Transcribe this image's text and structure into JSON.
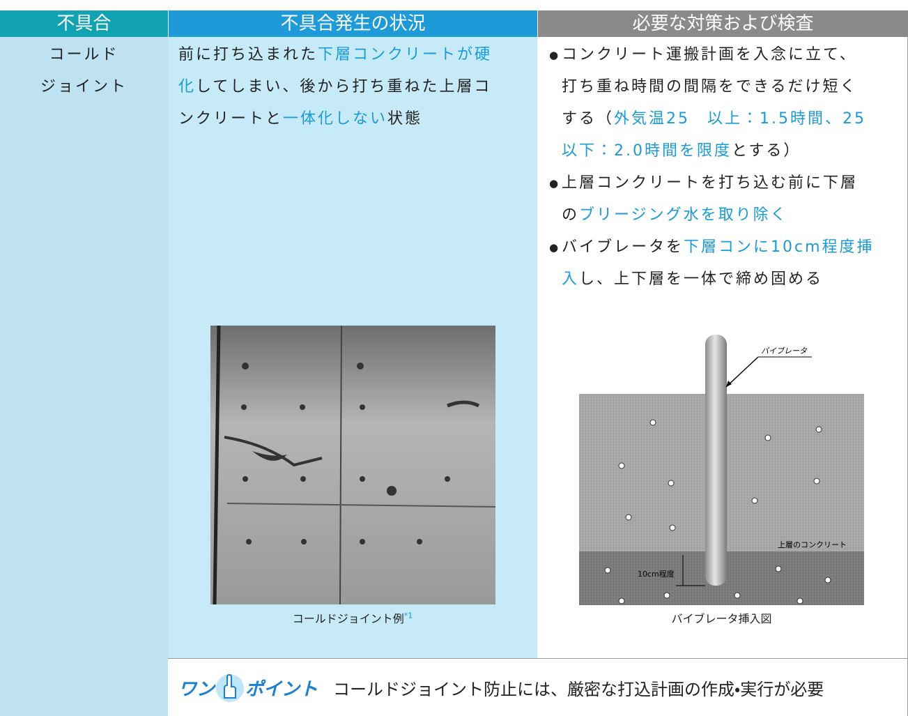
{
  "header": [
    "不具合",
    "不具合発生の状況",
    "必要な対策および検査"
  ],
  "defect": {
    "lines": [
      "コールド",
      "ジョイント"
    ]
  },
  "situation": {
    "lines": [
      [
        {
          "text": "前に打ち込まれた"
        },
        {
          "text": "下層コンクリートが硬",
          "color": "#1a9ad6"
        }
      ],
      [
        {
          "text": "化",
          "color": "#1a9ad6"
        },
        {
          "text": "してしまい、後から打ち重ねた上層コ"
        }
      ],
      [
        {
          "text": "ンクリートと"
        },
        {
          "text": "一体化しない",
          "color": "#1a9ad6"
        },
        {
          "text": "状態"
        }
      ]
    ],
    "photo_caption": "コールドジョイント例",
    "photo_note": "*1"
  },
  "measures": {
    "items": [
      {
        "lines": [
          [
            {
              "text": "コンクリート運搬計画を入念に立て、"
            }
          ],
          [
            {
              "text": "打ち重ね時間の間隔をできるだけ短く"
            }
          ],
          [
            {
              "text": "する（"
            },
            {
              "text": "外気温25　以上：1.5時間、25",
              "color": "#1a9ad6"
            }
          ],
          [
            {
              "text": "以下：2.0時間を限度",
              "color": "#1a9ad6"
            },
            {
              "text": "とする）"
            }
          ]
        ]
      },
      {
        "lines": [
          [
            {
              "text": "上層コンクリートを打ち込む前に下層"
            }
          ],
          [
            {
              "text": "の"
            },
            {
              "text": "ブリージング水を取り除く",
              "color": "#1a9ad6"
            }
          ]
        ]
      },
      {
        "lines": [
          [
            {
              "text": "バイブレータを"
            },
            {
              "text": "下層コンに10cm程度挿",
              "color": "#1a9ad6"
            }
          ],
          [
            {
              "text": "入",
              "color": "#1a9ad6"
            },
            {
              "text": "し、上下層を一体で締め固める"
            }
          ]
        ]
      }
    ],
    "diagram": {
      "vibrator_label": "バイブレータ",
      "layer_label": "上層のコンクリート",
      "depth_label": "10cm程度",
      "caption": "バイブレータ挿入図"
    }
  },
  "one_point": {
    "logo": [
      "ワン",
      "ポイント"
    ],
    "text": "コールドジョイント防止には、厳密な打込計画の作成・実行が必要"
  }
}
